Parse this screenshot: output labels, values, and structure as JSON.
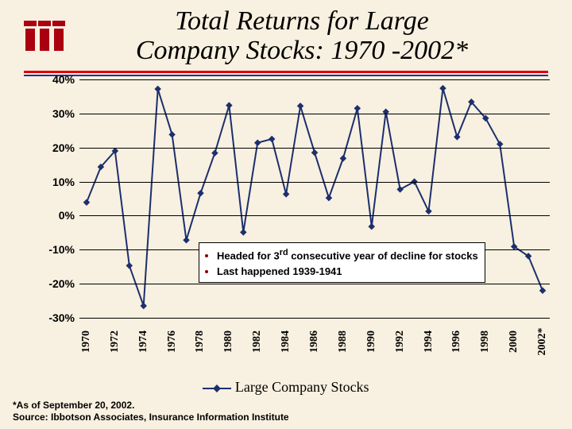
{
  "title_line1": "Total Returns for Large",
  "title_line2": "Company Stocks: 1970 -2002*",
  "logo_color": "#aa0010",
  "chart": {
    "type": "line",
    "series_name": "Large Company Stocks",
    "line_color": "#1c2f6e",
    "line_width": 2,
    "marker": "diamond",
    "marker_size": 6,
    "background_color": "#f8f0e0",
    "grid_color": "#000000",
    "ylim": [
      -30,
      40
    ],
    "ytick_step": 10,
    "yticks": [
      "40%",
      "30%",
      "20%",
      "10%",
      "0%",
      "-10%",
      "-20%",
      "-30%"
    ],
    "xlabels": [
      "1970",
      "1972",
      "1974",
      "1976",
      "1978",
      "1980",
      "1982",
      "1984",
      "1986",
      "1988",
      "1990",
      "1992",
      "1994",
      "1996",
      "1998",
      "2000",
      "2002*"
    ],
    "x_years": [
      "1970",
      "1971",
      "1972",
      "1973",
      "1974",
      "1975",
      "1976",
      "1977",
      "1978",
      "1979",
      "1980",
      "1981",
      "1982",
      "1983",
      "1984",
      "1985",
      "1986",
      "1987",
      "1988",
      "1989",
      "1990",
      "1991",
      "1992",
      "1993",
      "1994",
      "1995",
      "1996",
      "1997",
      "1998",
      "1999",
      "2000",
      "2001",
      "2002*"
    ],
    "values": [
      3.9,
      14.3,
      19.0,
      -14.7,
      -26.5,
      37.2,
      23.8,
      -7.2,
      6.6,
      18.4,
      32.4,
      -4.9,
      21.4,
      22.5,
      6.3,
      32.2,
      18.5,
      5.2,
      16.8,
      31.5,
      -3.2,
      30.5,
      7.7,
      10.0,
      1.3,
      37.4,
      23.1,
      33.4,
      28.6,
      21.0,
      -9.1,
      -11.9,
      -22.0
    ]
  },
  "annotations": {
    "bullet1_a": "Headed for 3",
    "bullet1_sup": "rd",
    "bullet1_b": " consecutive year of decline for stocks",
    "bullet2": "Last happened 1939-1941"
  },
  "legend_label": "Large Company Stocks",
  "footnote_line1": "*As of September 20, 2002.",
  "footnote_line2": "Source:  Ibbotson Associates, Insurance Information Institute"
}
